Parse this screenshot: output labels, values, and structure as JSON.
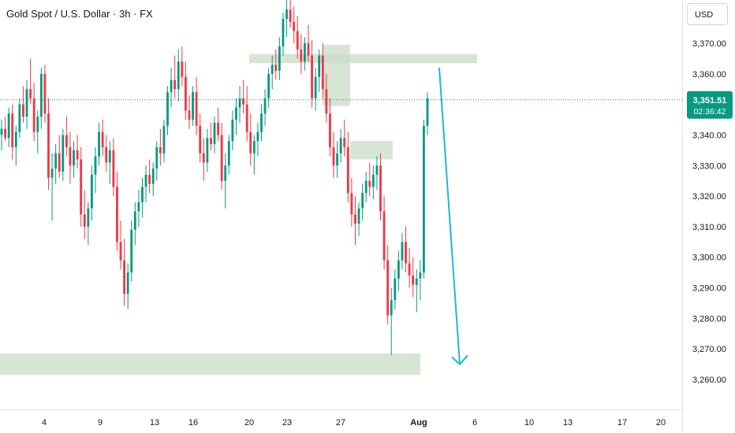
{
  "header": {
    "title": "Gold Spot / U.S. Dollar · 3h · FX",
    "currency_label": "USD"
  },
  "price_badge": {
    "price": "3,351.51",
    "countdown": "02:36:42"
  },
  "colors": {
    "up": "#089981",
    "down": "#f23645",
    "zone": "#c9dcc7",
    "arrow": "#1fb8d0",
    "badge": "#089981",
    "current_line": "#089981"
  },
  "chart_data": {
    "type": "candlestick",
    "symbol": "Gold Spot / U.S. Dollar",
    "interval": "3h",
    "ylim": [
      3258,
      3377
    ],
    "yticks": [
      {
        "v": 3370,
        "label": "3,370.00"
      },
      {
        "v": 3360,
        "label": "3,360.00"
      },
      {
        "v": 3340,
        "label": "3,340.00"
      },
      {
        "v": 3330,
        "label": "3,330.00"
      },
      {
        "v": 3320,
        "label": "3,320.00"
      },
      {
        "v": 3310,
        "label": "3,310.00"
      },
      {
        "v": 3300,
        "label": "3,300.00"
      },
      {
        "v": 3290,
        "label": "3,290.00"
      },
      {
        "v": 3280,
        "label": "3,280.00"
      },
      {
        "v": 3270,
        "label": "3,270.00"
      },
      {
        "v": 3260,
        "label": "3,260.00"
      }
    ],
    "xticks": [
      {
        "label": "4",
        "bold": false
      },
      {
        "label": "9",
        "bold": false
      },
      {
        "label": "13",
        "bold": false
      },
      {
        "label": "16",
        "bold": false
      },
      {
        "label": "20",
        "bold": false
      },
      {
        "label": "23",
        "bold": false
      },
      {
        "label": "27",
        "bold": false
      },
      {
        "label": "Aug",
        "bold": true
      },
      {
        "label": "6",
        "bold": false
      },
      {
        "label": "10",
        "bold": false
      },
      {
        "label": "13",
        "bold": false
      },
      {
        "label": "17",
        "bold": false
      },
      {
        "label": "20",
        "bold": false
      }
    ],
    "current_price": 3351.51,
    "candles": [
      [
        3340,
        3345,
        3335,
        3342
      ],
      [
        3342,
        3346,
        3338,
        3339
      ],
      [
        3339,
        3349,
        3336,
        3347
      ],
      [
        3347,
        3350,
        3332,
        3336
      ],
      [
        3336,
        3343,
        3330,
        3341
      ],
      [
        3341,
        3352,
        3339,
        3350
      ],
      [
        3350,
        3356,
        3344,
        3346
      ],
      [
        3346,
        3358,
        3342,
        3355
      ],
      [
        3355,
        3365,
        3350,
        3352
      ],
      [
        3352,
        3357,
        3338,
        3341
      ],
      [
        3341,
        3348,
        3334,
        3346
      ],
      [
        3346,
        3362,
        3342,
        3360
      ],
      [
        3360,
        3363,
        3344,
        3347
      ],
      [
        3347,
        3352,
        3322,
        3326
      ],
      [
        3326,
        3334,
        3312,
        3329
      ],
      [
        3329,
        3337,
        3324,
        3334
      ],
      [
        3334,
        3340,
        3326,
        3328
      ],
      [
        3328,
        3342,
        3325,
        3340
      ],
      [
        3340,
        3346,
        3333,
        3336
      ],
      [
        3336,
        3341,
        3324,
        3330
      ],
      [
        3330,
        3338,
        3326,
        3335
      ],
      [
        3335,
        3340,
        3329,
        3332
      ],
      [
        3332,
        3336,
        3310,
        3314
      ],
      [
        3314,
        3322,
        3306,
        3310
      ],
      [
        3310,
        3318,
        3304,
        3316
      ],
      [
        3316,
        3330,
        3312,
        3327
      ],
      [
        3327,
        3336,
        3321,
        3333
      ],
      [
        3333,
        3344,
        3330,
        3341
      ],
      [
        3341,
        3345,
        3333,
        3336
      ],
      [
        3336,
        3340,
        3328,
        3331
      ],
      [
        3331,
        3338,
        3324,
        3335
      ],
      [
        3335,
        3339,
        3320,
        3323
      ],
      [
        3323,
        3328,
        3302,
        3305
      ],
      [
        3305,
        3312,
        3296,
        3299
      ],
      [
        3299,
        3306,
        3284,
        3288
      ],
      [
        3288,
        3298,
        3283,
        3295
      ],
      [
        3295,
        3312,
        3292,
        3309
      ],
      [
        3309,
        3318,
        3304,
        3315
      ],
      [
        3315,
        3322,
        3310,
        3318
      ],
      [
        3318,
        3326,
        3313,
        3323
      ],
      [
        3323,
        3330,
        3318,
        3327
      ],
      [
        3327,
        3332,
        3321,
        3324
      ],
      [
        3324,
        3331,
        3320,
        3329
      ],
      [
        3329,
        3338,
        3325,
        3336
      ],
      [
        3336,
        3342,
        3330,
        3334
      ],
      [
        3334,
        3345,
        3331,
        3343
      ],
      [
        3343,
        3356,
        3340,
        3354
      ],
      [
        3354,
        3362,
        3349,
        3358
      ],
      [
        3358,
        3366,
        3352,
        3355
      ],
      [
        3355,
        3368,
        3351,
        3364
      ],
      [
        3364,
        3369,
        3356,
        3359
      ],
      [
        3359,
        3364,
        3345,
        3348
      ],
      [
        3348,
        3353,
        3342,
        3345
      ],
      [
        3345,
        3356,
        3343,
        3354
      ],
      [
        3354,
        3359,
        3340,
        3343
      ],
      [
        3343,
        3347,
        3331,
        3334
      ],
      [
        3334,
        3339,
        3325,
        3331
      ],
      [
        3331,
        3342,
        3328,
        3339
      ],
      [
        3339,
        3344,
        3335,
        3337
      ],
      [
        3337,
        3346,
        3334,
        3344
      ],
      [
        3344,
        3349,
        3338,
        3340
      ],
      [
        3340,
        3344,
        3322,
        3325
      ],
      [
        3325,
        3334,
        3316,
        3330
      ],
      [
        3330,
        3340,
        3327,
        3338
      ],
      [
        3338,
        3348,
        3335,
        3345
      ],
      [
        3345,
        3352,
        3340,
        3349
      ],
      [
        3349,
        3356,
        3344,
        3352
      ],
      [
        3352,
        3358,
        3347,
        3350
      ],
      [
        3350,
        3356,
        3338,
        3341
      ],
      [
        3341,
        3347,
        3330,
        3334
      ],
      [
        3334,
        3340,
        3327,
        3338
      ],
      [
        3338,
        3344,
        3333,
        3341
      ],
      [
        3341,
        3350,
        3338,
        3347
      ],
      [
        3347,
        3355,
        3343,
        3352
      ],
      [
        3352,
        3362,
        3349,
        3360
      ],
      [
        3360,
        3366,
        3355,
        3363
      ],
      [
        3363,
        3368,
        3358,
        3361
      ],
      [
        3361,
        3372,
        3358,
        3369
      ],
      [
        3369,
        3380,
        3366,
        3378
      ],
      [
        3378,
        3384,
        3372,
        3381
      ],
      [
        3381,
        3386,
        3375,
        3377
      ],
      [
        3377,
        3382,
        3370,
        3374
      ],
      [
        3374,
        3379,
        3365,
        3368
      ],
      [
        3368,
        3373,
        3360,
        3364
      ],
      [
        3364,
        3372,
        3361,
        3370
      ],
      [
        3370,
        3376,
        3364,
        3366
      ],
      [
        3366,
        3371,
        3349,
        3352
      ],
      [
        3352,
        3362,
        3348,
        3359
      ],
      [
        3359,
        3368,
        3354,
        3366
      ],
      [
        3366,
        3370,
        3352,
        3355
      ],
      [
        3355,
        3360,
        3344,
        3347
      ],
      [
        3347,
        3352,
        3333,
        3336
      ],
      [
        3336,
        3341,
        3326,
        3330
      ],
      [
        3330,
        3338,
        3326,
        3334
      ],
      [
        3334,
        3342,
        3331,
        3339
      ],
      [
        3339,
        3345,
        3333,
        3336
      ],
      [
        3336,
        3341,
        3318,
        3321
      ],
      [
        3321,
        3326,
        3310,
        3314
      ],
      [
        3314,
        3320,
        3304,
        3311
      ],
      [
        3311,
        3318,
        3307,
        3316
      ],
      [
        3316,
        3324,
        3312,
        3321
      ],
      [
        3321,
        3328,
        3318,
        3325
      ],
      [
        3325,
        3331,
        3320,
        3323
      ],
      [
        3323,
        3330,
        3319,
        3327
      ],
      [
        3327,
        3333,
        3322,
        3330
      ],
      [
        3330,
        3334,
        3312,
        3315
      ],
      [
        3315,
        3320,
        3296,
        3299
      ],
      [
        3299,
        3304,
        3278,
        3281
      ],
      [
        3281,
        3290,
        3268,
        3286
      ],
      [
        3286,
        3296,
        3283,
        3293
      ],
      [
        3293,
        3302,
        3289,
        3299
      ],
      [
        3299,
        3308,
        3296,
        3305
      ],
      [
        3305,
        3310,
        3295,
        3298
      ],
      [
        3298,
        3303,
        3290,
        3294
      ],
      [
        3294,
        3300,
        3287,
        3291
      ],
      [
        3291,
        3296,
        3282,
        3293
      ],
      [
        3293,
        3299,
        3286,
        3295
      ],
      [
        3295,
        3345,
        3293,
        3343
      ],
      [
        3343,
        3354,
        3340,
        3352
      ]
    ],
    "zones": [
      {
        "from": 3268.5,
        "to": 3261.5,
        "x0": 0,
        "x1": 533
      },
      {
        "from": 3366.5,
        "to": 3363.5,
        "x0": 316,
        "x1": 605
      },
      {
        "from": 3369.5,
        "to": 3349.5,
        "x0": 409,
        "x1": 444
      },
      {
        "from": 3338.0,
        "to": 3332.0,
        "x0": 444,
        "x1": 498
      }
    ],
    "projection": {
      "from": 3362,
      "to": 3265
    }
  }
}
